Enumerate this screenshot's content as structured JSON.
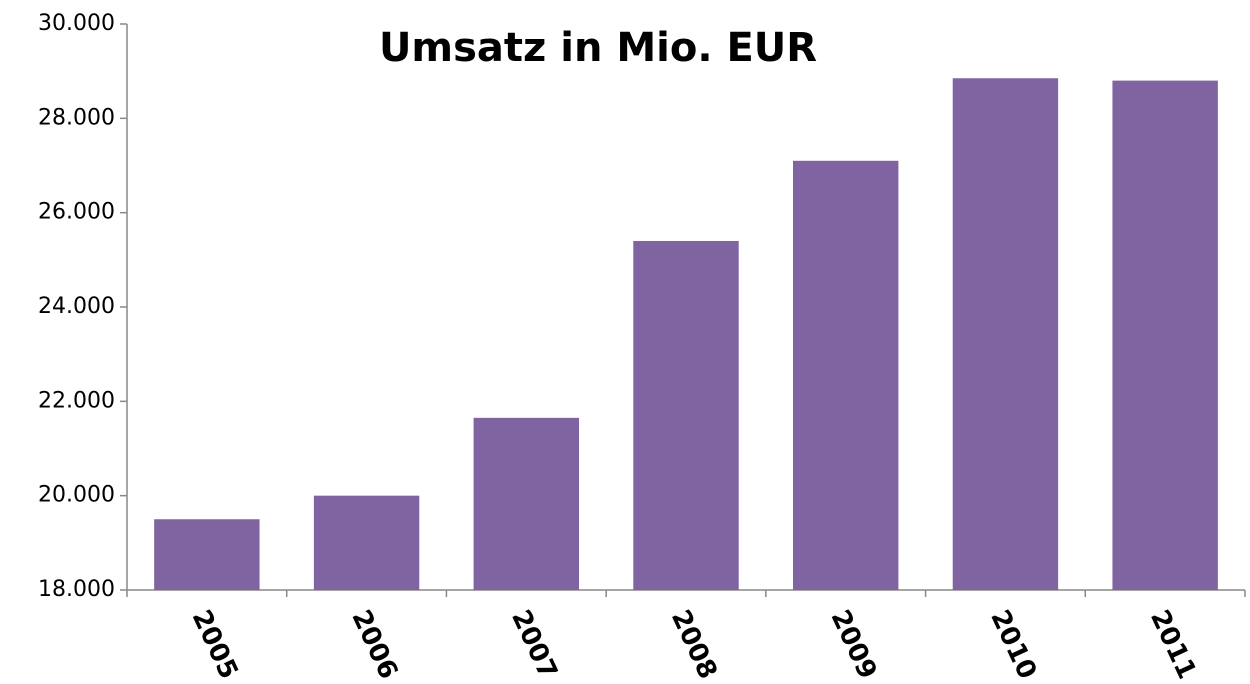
{
  "chart_data": {
    "type": "bar",
    "title": "Umsatz in Mio. EUR",
    "categories": [
      "2005",
      "2006",
      "2007",
      "2008",
      "2009",
      "2010",
      "2011"
    ],
    "values": [
      19500,
      20000,
      21650,
      25400,
      27100,
      28850,
      28800
    ],
    "color": "#8064a2",
    "ylim": [
      18000,
      30000
    ],
    "yticks": [
      {
        "value": 18000,
        "label": "18.000"
      },
      {
        "value": 20000,
        "label": "20.000"
      },
      {
        "value": 22000,
        "label": "22.000"
      },
      {
        "value": 24000,
        "label": "24.000"
      },
      {
        "value": 26000,
        "label": "26.000"
      },
      {
        "value": 28000,
        "label": "28.000"
      },
      {
        "value": 30000,
        "label": "30.000"
      }
    ],
    "grid": false
  }
}
